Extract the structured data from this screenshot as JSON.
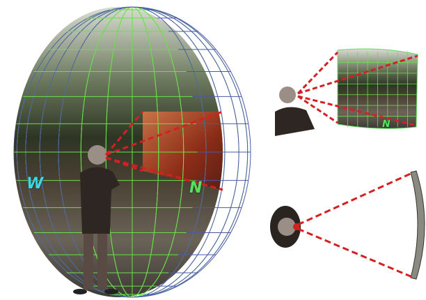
{
  "sphere_view": {
    "west_label": "W",
    "north_label": "N"
  },
  "perspective_view": {
    "north_label": "N"
  }
}
